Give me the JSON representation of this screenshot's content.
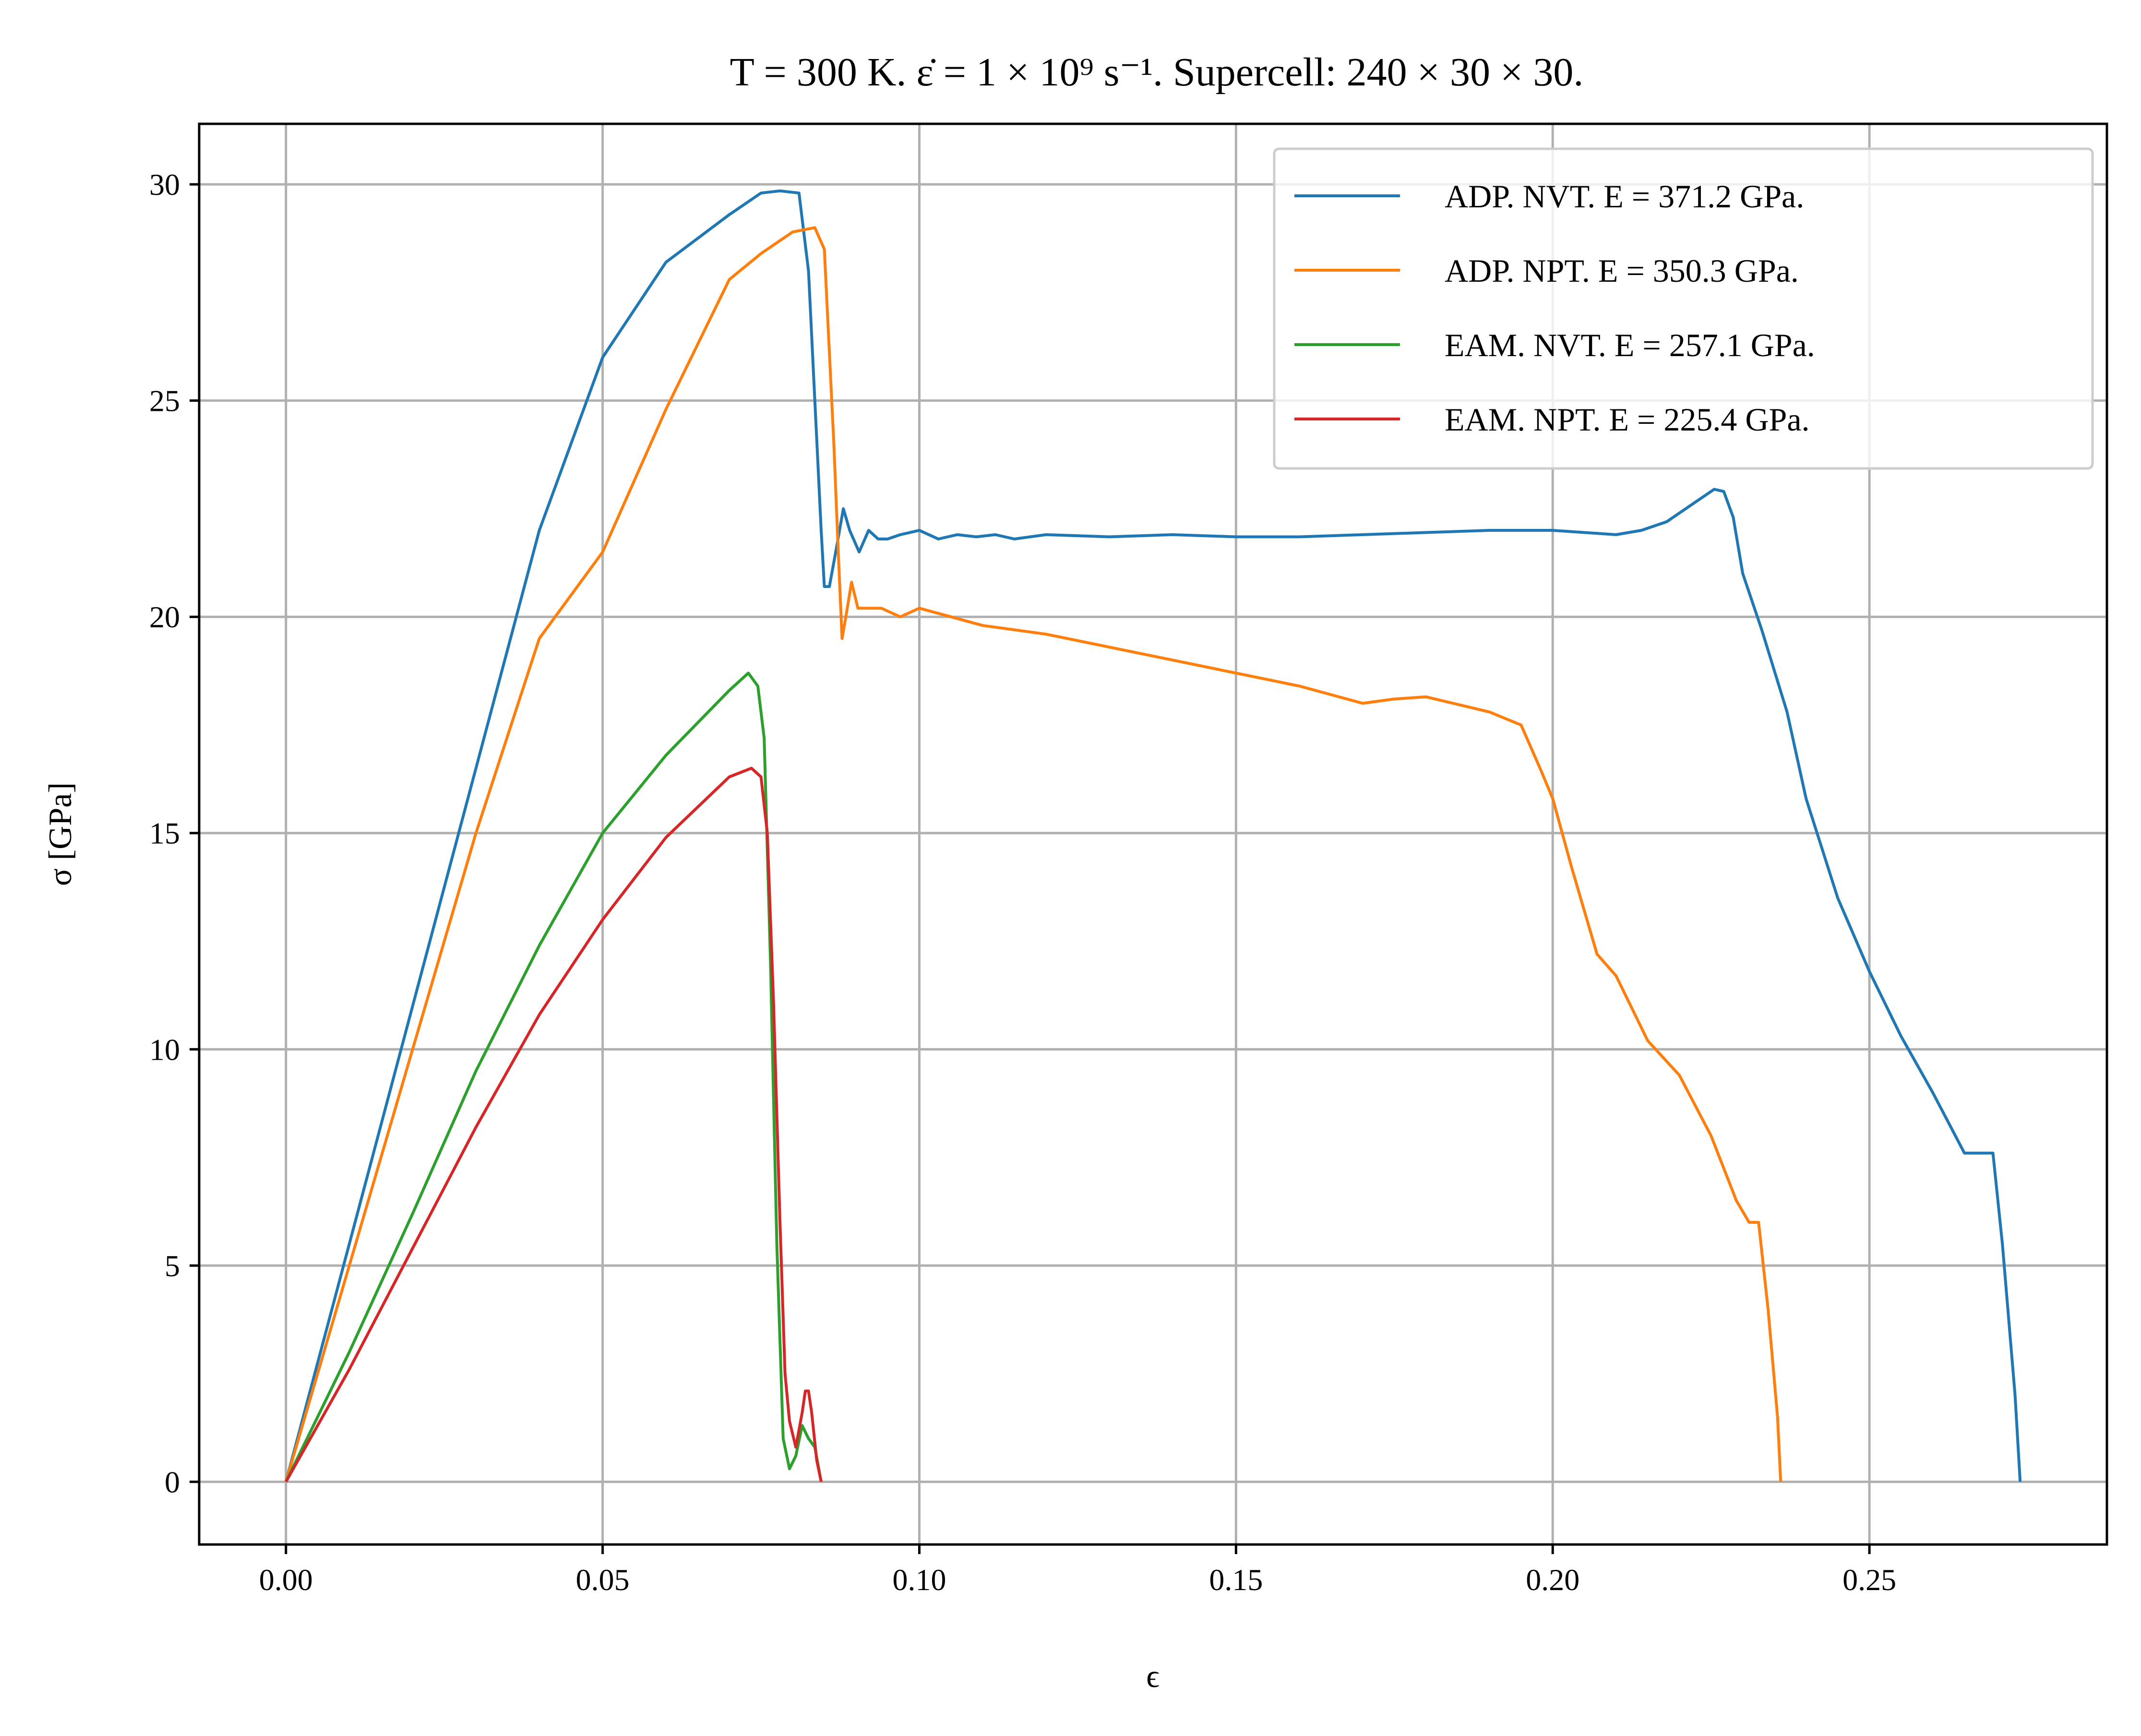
{
  "chart_data": {
    "type": "line",
    "title": "T = 300 K. ε̇ = 1 × 10⁹ s⁻¹. Supercell: 240 × 30 × 30.",
    "xlabel": "ϵ",
    "ylabel": "σ [GPa]",
    "xlim": [
      -0.0137,
      0.2875
    ],
    "ylim": [
      -1.45,
      31.4
    ],
    "xticks": [
      0.0,
      0.05,
      0.1,
      0.15,
      0.2,
      0.25
    ],
    "xtick_labels": [
      "0.00",
      "0.05",
      "0.10",
      "0.15",
      "0.20",
      "0.25"
    ],
    "yticks": [
      0,
      5,
      10,
      15,
      20,
      25,
      30
    ],
    "ytick_labels": [
      "0",
      "5",
      "10",
      "15",
      "20",
      "25",
      "30"
    ],
    "grid": true,
    "legend_position": "top-right",
    "series": [
      {
        "name": "ADP. NVT. E = 371.2 GPa.",
        "color": "#1f77b4",
        "x": [
          0,
          0.01,
          0.02,
          0.03,
          0.04,
          0.05,
          0.06,
          0.07,
          0.075,
          0.078,
          0.081,
          0.0825,
          0.0835,
          0.084,
          0.0845,
          0.085,
          0.0858,
          0.0868,
          0.088,
          0.089,
          0.0905,
          0.092,
          0.0935,
          0.095,
          0.097,
          0.1,
          0.103,
          0.106,
          0.109,
          0.112,
          0.115,
          0.12,
          0.13,
          0.14,
          0.15,
          0.16,
          0.17,
          0.18,
          0.19,
          0.2,
          0.205,
          0.21,
          0.214,
          0.218,
          0.222,
          0.2255,
          0.227,
          0.2285,
          0.23,
          0.233,
          0.237,
          0.24,
          0.245,
          0.25,
          0.255,
          0.26,
          0.265,
          0.2695,
          0.271,
          0.273,
          0.2738
        ],
        "y": [
          0,
          5.5,
          11,
          16.5,
          22,
          26,
          28.2,
          29.3,
          29.8,
          29.85,
          29.8,
          28.0,
          25.0,
          23.5,
          22.0,
          20.7,
          20.7,
          21.5,
          22.5,
          22.0,
          21.5,
          22.0,
          21.8,
          21.8,
          21.9,
          22.0,
          21.8,
          21.9,
          21.85,
          21.9,
          21.8,
          21.9,
          21.85,
          21.9,
          21.85,
          21.85,
          21.9,
          21.95,
          22.0,
          22.0,
          21.95,
          21.9,
          22.0,
          22.2,
          22.6,
          22.95,
          22.9,
          22.3,
          21.0,
          19.7,
          17.8,
          15.8,
          13.5,
          11.8,
          10.3,
          9.0,
          7.6,
          7.6,
          5.5,
          2.0,
          0.0
        ]
      },
      {
        "name": "ADP. NPT. E = 350.3 GPa.",
        "color": "#ff7f0e",
        "x": [
          0,
          0.01,
          0.02,
          0.03,
          0.04,
          0.05,
          0.06,
          0.07,
          0.075,
          0.08,
          0.0835,
          0.085,
          0.0865,
          0.0872,
          0.0878,
          0.0884,
          0.0893,
          0.0903,
          0.092,
          0.094,
          0.097,
          0.1,
          0.105,
          0.11,
          0.12,
          0.13,
          0.14,
          0.15,
          0.16,
          0.17,
          0.175,
          0.18,
          0.19,
          0.195,
          0.198,
          0.2,
          0.203,
          0.207,
          0.21,
          0.215,
          0.22,
          0.225,
          0.229,
          0.231,
          0.2325,
          0.234,
          0.2355,
          0.236
        ],
        "y": [
          0,
          5,
          10,
          15,
          19.5,
          21.5,
          24.8,
          27.8,
          28.4,
          28.9,
          29.0,
          28.5,
          24.0,
          21.5,
          19.5,
          20.0,
          20.8,
          20.2,
          20.2,
          20.2,
          20.0,
          20.2,
          20.0,
          19.8,
          19.6,
          19.3,
          19.0,
          18.7,
          18.4,
          18.0,
          18.1,
          18.15,
          17.8,
          17.5,
          16.5,
          15.8,
          14.2,
          12.2,
          11.7,
          10.2,
          9.4,
          8.0,
          6.5,
          6.0,
          6.0,
          4.0,
          1.5,
          0.0
        ]
      },
      {
        "name": "EAM. NVT. E = 257.1 GPa.",
        "color": "#2ca02c",
        "x": [
          0,
          0.01,
          0.02,
          0.03,
          0.04,
          0.05,
          0.06,
          0.07,
          0.073,
          0.0745,
          0.0755,
          0.0765,
          0.0775,
          0.0785,
          0.0795,
          0.0805,
          0.0815,
          0.0825,
          0.0835,
          0.0845
        ],
        "y": [
          0,
          3.0,
          6.2,
          9.5,
          12.4,
          15.0,
          16.8,
          18.3,
          18.7,
          18.4,
          17.2,
          12.0,
          5.5,
          1.0,
          0.3,
          0.6,
          1.3,
          1.0,
          0.8,
          0.0
        ]
      },
      {
        "name": "EAM. NPT. E = 225.4 GPa.",
        "color": "#d62728",
        "x": [
          0,
          0.01,
          0.02,
          0.03,
          0.04,
          0.05,
          0.06,
          0.07,
          0.0735,
          0.075,
          0.076,
          0.077,
          0.078,
          0.0788,
          0.0795,
          0.0805,
          0.0815,
          0.082,
          0.0825,
          0.083,
          0.0838,
          0.0845
        ],
        "y": [
          0,
          2.6,
          5.4,
          8.2,
          10.8,
          13.0,
          14.9,
          16.3,
          16.5,
          16.3,
          15.0,
          11.0,
          6.0,
          2.5,
          1.4,
          0.8,
          1.6,
          2.1,
          2.1,
          1.6,
          0.5,
          0.0
        ]
      }
    ]
  }
}
